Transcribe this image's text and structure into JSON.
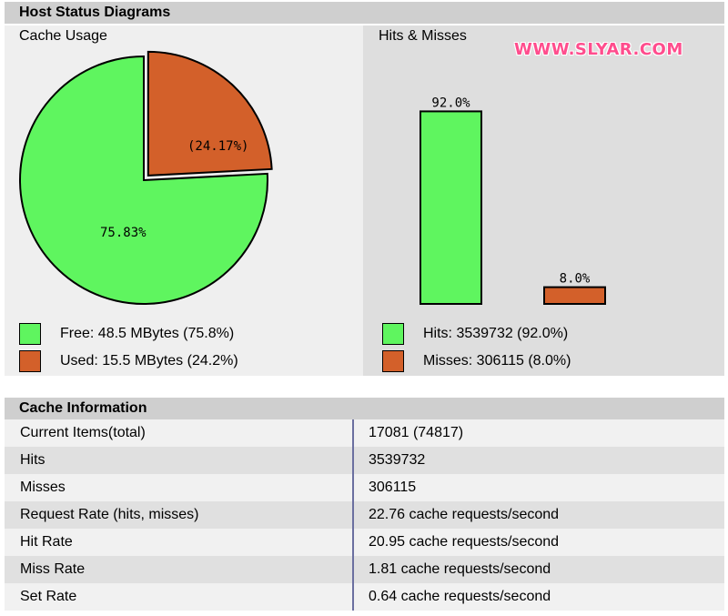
{
  "colors": {
    "free": "#5ff55f",
    "used": "#d3602a",
    "header_bg": "#cfcfcf"
  },
  "watermark": "WWW.SLYAR.COM",
  "host_status": {
    "title": "Host Status Diagrams",
    "cache_usage": {
      "title": "Cache Usage",
      "legend": [
        {
          "label": "Free: 48.5 MBytes (75.8%)",
          "color": "#5ff55f"
        },
        {
          "label": "Used: 15.5 MBytes (24.2%)",
          "color": "#d3602a"
        }
      ]
    },
    "hits_misses": {
      "title": "Hits & Misses",
      "legend": [
        {
          "label": "Hits: 3539732 (92.0%)",
          "color": "#5ff55f"
        },
        {
          "label": "Misses: 306115 (8.0%)",
          "color": "#d3602a"
        }
      ]
    }
  },
  "cache_info": {
    "title": "Cache Information",
    "rows": [
      {
        "label": "Current Items(total)",
        "value": "17081 (74817)"
      },
      {
        "label": "Hits",
        "value": "3539732"
      },
      {
        "label": "Misses",
        "value": "306115"
      },
      {
        "label": "Request Rate (hits, misses)",
        "value": "22.76 cache requests/second"
      },
      {
        "label": "Hit Rate",
        "value": "20.95 cache requests/second"
      },
      {
        "label": "Miss Rate",
        "value": "1.81 cache requests/second"
      },
      {
        "label": "Set Rate",
        "value": "0.64 cache requests/second"
      }
    ]
  },
  "chart_data": [
    {
      "type": "pie",
      "title": "Cache Usage",
      "categories": [
        "Free",
        "Used"
      ],
      "values": [
        75.83,
        24.17
      ],
      "data_labels": [
        "75.83%",
        "(24.17%)"
      ],
      "colors": [
        "#5ff55f",
        "#d3602a"
      ]
    },
    {
      "type": "bar",
      "title": "Hits & Misses",
      "categories": [
        "Hits",
        "Misses"
      ],
      "values": [
        92.0,
        8.0
      ],
      "data_labels": [
        "92.0%",
        "8.0%"
      ],
      "colors": [
        "#5ff55f",
        "#d3602a"
      ],
      "ylim": [
        0,
        100
      ]
    }
  ]
}
